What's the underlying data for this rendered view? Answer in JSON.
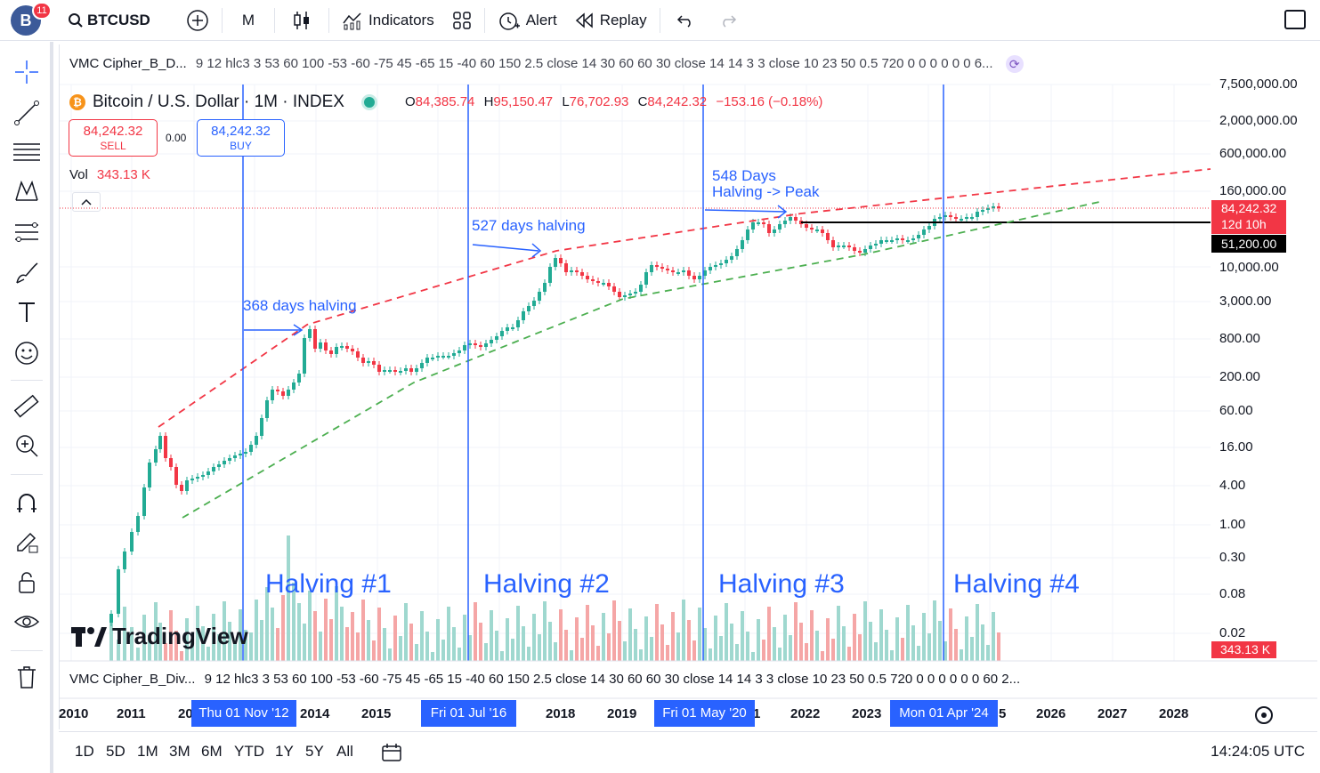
{
  "topbar": {
    "avatar_letter": "B",
    "notifications": "11",
    "symbol": "BTCUSD",
    "interval": "M",
    "indicators_label": "Indicators",
    "alert_label": "Alert",
    "replay_label": "Replay"
  },
  "indicator": {
    "name_top": "VMC Cipher_B_D...",
    "values_top": "9 12 hlc3 3 53 60 100 -53 -60 -75 45 -65 15 -40 60 150 2.5 close 14 30 60 60 30 close 14 14 3 3 close 10 23 50 0.5 720 0 0 0 0 0 0 6...",
    "name_bottom": "VMC Cipher_B_Div...",
    "values_bottom": "9 12 hlc3 3 53 60 100 -53 -60 -75 45 -65 15 -40 60 150 2.5 close 14 30 60 60 30 close 14 14 3 3 close 10 23 50 0.5 720 0 0 0 0 0 0 60 2..."
  },
  "symbol_line": {
    "title": "Bitcoin / U.S. Dollar · 1M · INDEX",
    "o_label": "O",
    "o_value": "84,385.74",
    "h_label": "H",
    "h_value": "95,150.47",
    "l_label": "L",
    "l_value": "76,702.93",
    "c_label": "C",
    "c_value": "84,242.32",
    "change": "−153.16 (−0.18%)"
  },
  "trade": {
    "sell_price": "84,242.32",
    "sell_label": "SELL",
    "spread": "0.00",
    "buy_price": "84,242.32",
    "buy_label": "BUY"
  },
  "volume": {
    "label": "Vol",
    "value": "343.13 K"
  },
  "y_axis": {
    "labels": [
      "7,500,000.00",
      "2,000,000.00",
      "600,000.00",
      "160,000.00",
      "10,000.00",
      "3,000.00",
      "800.00",
      "200.00",
      "60.00",
      "16.00",
      "4.00",
      "1.00",
      "0.30",
      "0.08",
      "0.02"
    ],
    "price_tag": "84,242.32",
    "countdown": "12d 10h",
    "level_tag": "51,200.00",
    "volume_tag": "343.13 K"
  },
  "x_axis": {
    "labels": [
      "2010",
      "2011",
      "20",
      "2014",
      "2015",
      "2018",
      "2019",
      "1",
      "2022",
      "2023",
      "5",
      "2026",
      "2027",
      "2028"
    ],
    "highlights": [
      "Thu 01 Nov '12",
      "Fri 01 Jul '16",
      "Fri 01 May '20",
      "Mon 01 Apr '24"
    ]
  },
  "annotations": {
    "a1": "368 days halving",
    "a2": "527 days halving",
    "a3_line1": "548 Days",
    "a3_line2": "Halving -> Peak",
    "h1": "Halving #1",
    "h2": "Halving #2",
    "h3": "Halving #3",
    "h4": "Halving #4"
  },
  "watermark": "TradingView",
  "bottombar": {
    "ranges": [
      "1D",
      "5D",
      "1M",
      "3M",
      "6M",
      "YTD",
      "1Y",
      "5Y",
      "All"
    ],
    "clock": "14:24:05 UTC"
  },
  "colors": {
    "up": "#22ab94",
    "down": "#f23645",
    "accent": "#2962ff",
    "vol_up": "#9fd8cf",
    "vol_down": "#f5a6a6"
  },
  "chart_data": {
    "type": "candlestick",
    "scale": "log",
    "halving_dates": [
      "2012-11-01",
      "2016-07-01",
      "2020-05-01",
      "2024-04-01"
    ],
    "last_close": 84242.32,
    "horizontal_level": 51200.0,
    "x_range": [
      "2010",
      "2028"
    ]
  }
}
